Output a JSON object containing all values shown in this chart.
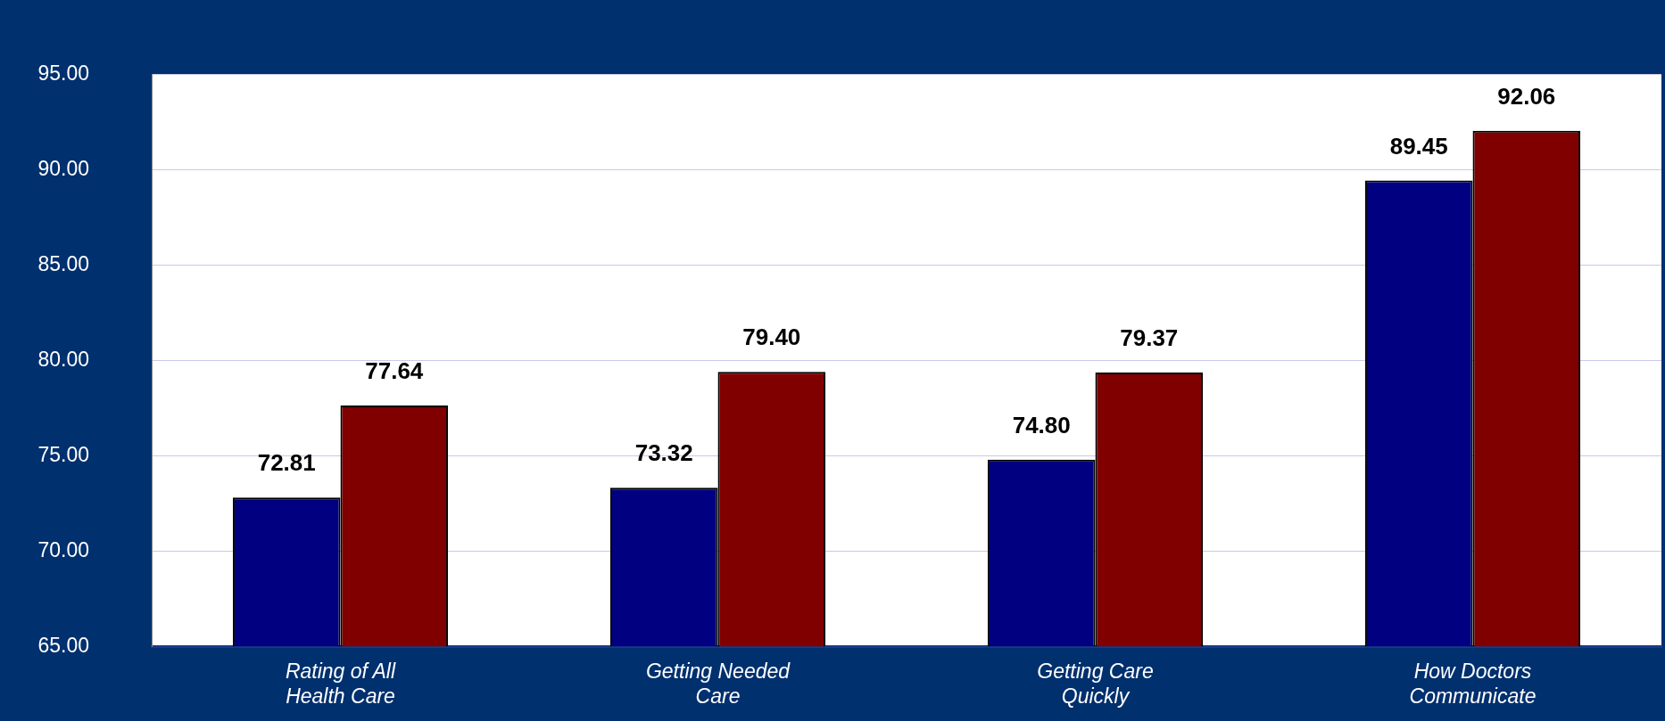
{
  "chart_data": {
    "type": "bar",
    "categories": [
      "Rating of All\nHealth Care",
      "Getting Needed\nCare",
      "Getting Care\nQuickly",
      "How Doctors\nCommunicate"
    ],
    "series": [
      {
        "color": "#000080",
        "values": [
          72.81,
          73.32,
          74.8,
          89.45
        ],
        "value_labels": [
          "72.81",
          "73.32",
          "74.80",
          "89.45"
        ]
      },
      {
        "color": "#800000",
        "values": [
          77.64,
          79.4,
          79.37,
          92.06
        ],
        "value_labels": [
          "77.64",
          "79.40",
          "79.37",
          "92.06"
        ]
      }
    ],
    "ylim": [
      65,
      95
    ],
    "yticks": [
      {
        "value": 65,
        "label": "65.00"
      },
      {
        "value": 70,
        "label": "70.00"
      },
      {
        "value": 75,
        "label": "75.00"
      },
      {
        "value": 80,
        "label": "80.00"
      },
      {
        "value": 85,
        "label": "85.00"
      },
      {
        "value": 90,
        "label": "90.00"
      },
      {
        "value": 95,
        "label": "95.00"
      }
    ],
    "grid": "y",
    "legend": false
  }
}
